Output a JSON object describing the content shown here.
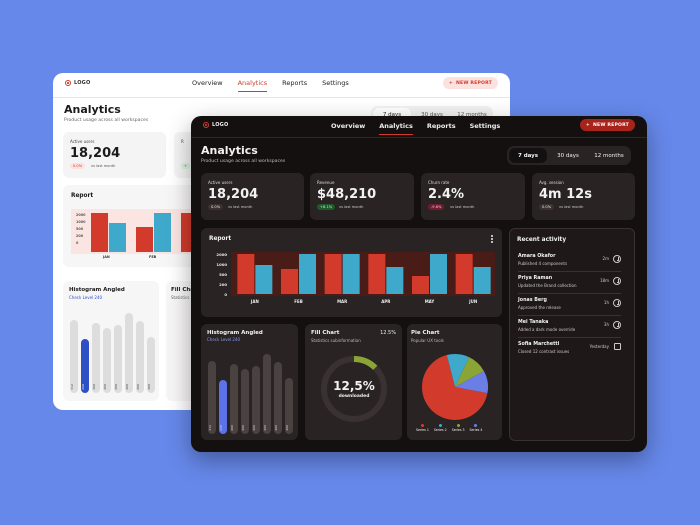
{
  "colors": {
    "accent": "#d23b2c",
    "secondary": "#3fa9cc",
    "highlight": "#2f4fc7",
    "background": "#6688ea"
  },
  "logo_text": "LOGO",
  "nav": [
    "Overview",
    "Analytics",
    "Reports",
    "Settings"
  ],
  "new_report_label": "NEW REPORT",
  "page_title": "Analytics",
  "page_subtitle": "Product usage across all workspaces",
  "ranges": [
    "7 days",
    "30 days",
    "12 months"
  ],
  "kpis": [
    {
      "label": "Active users",
      "value": "18,204",
      "badge": "0.0%",
      "compare": "vs last month"
    },
    {
      "label": "Revenue",
      "value": "$48,210",
      "badge": "+8.1%",
      "compare": "vs last month"
    },
    {
      "label": "Churn rate",
      "value": "2.4%",
      "badge": "-9.6%",
      "compare": "vs last month"
    },
    {
      "label": "Avg. session",
      "value": "4m 12s",
      "badge": "0.0%",
      "compare": "vs last month"
    }
  ],
  "report": {
    "title": "Report",
    "more_icon": "more-vertical-icon",
    "chart_data": {
      "type": "bar",
      "categories": [
        "JAN",
        "FEB",
        "MAR",
        "APR",
        "MAY",
        "JUN"
      ],
      "yticks": [
        "2000",
        "1000",
        "500",
        "200",
        "0"
      ],
      "series": [
        {
          "values": [
            2000,
            1250,
            2000,
            2000,
            900,
            2000
          ]
        },
        {
          "values": [
            1450,
            2000,
            2000,
            1350,
            2000,
            1350
          ]
        }
      ],
      "ylim": [
        0,
        2000
      ]
    }
  },
  "light_kpi_partial": {
    "label": "R",
    "badge": "+"
  },
  "light_report_months": [
    "JAN",
    "FEB"
  ],
  "light_fill_partial": {
    "title": "Fill Cha",
    "sub": "Statistics"
  },
  "activity": {
    "title": "Recent activity",
    "items": [
      {
        "name": "Amara Okafor",
        "text": "Published 4 components",
        "time": "2m"
      },
      {
        "name": "Priya Raman",
        "text": "Updated the Brand collection",
        "time": "18m"
      },
      {
        "name": "Jonas Berg",
        "text": "Approved the release",
        "time": "1h"
      },
      {
        "name": "Mei Tanaka",
        "text": "Added a dark mode override",
        "time": "3h"
      },
      {
        "name": "Sofia Marchetti",
        "text": "Closed 12 contrast issues",
        "time": "Yesterday"
      }
    ]
  },
  "histogram": {
    "title": "Histogram Angled",
    "subtitle": "Check Level 240",
    "chart_data": {
      "type": "bar",
      "values": [
        312,
        240,
        400,
        400,
        400,
        400,
        400,
        400
      ],
      "labels": [
        "312",
        "240",
        "400",
        "400",
        "400",
        "400",
        "400",
        "400"
      ],
      "highlight_index": 1
    }
  },
  "fill": {
    "title": "Fill Chart",
    "value": "12.5%",
    "subtitle": "Statistics subinformation",
    "center_value": "12,5%",
    "center_label": "downloaded",
    "chart_data": {
      "type": "pie",
      "values": [
        12.5,
        87.5
      ]
    }
  },
  "pie": {
    "title": "Pie Chart",
    "subtitle": "Popular UX tools",
    "chart_data": {
      "type": "pie",
      "values": [
        68,
        11,
        10,
        11
      ],
      "series": [
        {
          "name": "Series 1",
          "color": "#d23b2c"
        },
        {
          "name": "Series 2",
          "color": "#3fa9cc"
        },
        {
          "name": "Series 3",
          "color": "#8aa536"
        },
        {
          "name": "Series 4",
          "color": "#6b7ee6"
        }
      ]
    }
  }
}
